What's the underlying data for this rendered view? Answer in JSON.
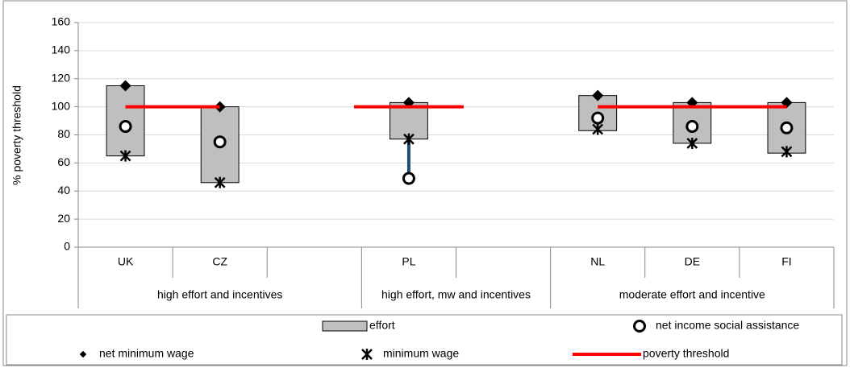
{
  "chart_data": {
    "type": "box-range",
    "y_label": "% poverty threshold",
    "categories": [
      "UK",
      "CZ",
      null,
      "PL",
      null,
      "NL",
      "DE",
      "FI"
    ],
    "groups": [
      {
        "label": "high effort and incentives",
        "span": 3
      },
      {
        "label": "high effort, mw and incentives",
        "span": 2
      },
      {
        "label": "moderate effort and incentive",
        "span": 3
      }
    ],
    "ylim": [
      0,
      160
    ],
    "yticks": [
      0,
      20,
      40,
      60,
      80,
      100,
      120,
      140,
      160
    ],
    "grid": true,
    "series": [
      {
        "name": "effort",
        "kind": "box",
        "color": "#bfbfbf",
        "low": [
          65,
          46,
          null,
          77,
          null,
          83,
          74,
          67
        ],
        "high": [
          115,
          100,
          null,
          103,
          null,
          108,
          103,
          103
        ]
      },
      {
        "name": "net income social assistance",
        "kind": "circle",
        "color": "#000000",
        "values": [
          86,
          75,
          null,
          49,
          null,
          92,
          86,
          85
        ]
      },
      {
        "name": "net minimum wage",
        "kind": "diamond",
        "color": "#000000",
        "values": [
          115,
          100,
          null,
          103,
          null,
          108,
          103,
          103
        ]
      },
      {
        "name": "minimum wage",
        "kind": "star",
        "color": "#000000",
        "values": [
          65,
          46,
          null,
          77,
          null,
          84,
          74,
          68
        ]
      },
      {
        "name": "poverty threshold",
        "kind": "line",
        "color": "#ff0000",
        "values": [
          100,
          100,
          null,
          100,
          null,
          100,
          100,
          100
        ]
      }
    ]
  }
}
